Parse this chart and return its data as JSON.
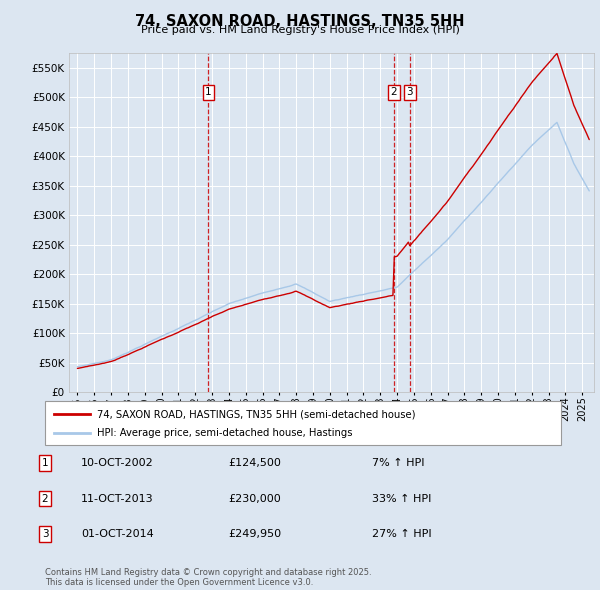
{
  "title": "74, SAXON ROAD, HASTINGS, TN35 5HH",
  "subtitle": "Price paid vs. HM Land Registry's House Price Index (HPI)",
  "bg_color": "#dce6f1",
  "plot_bg_color": "#dce6f1",
  "hpi_color": "#a8c8e8",
  "price_color": "#cc0000",
  "ylim": [
    0,
    575000
  ],
  "yticks": [
    0,
    50000,
    100000,
    150000,
    200000,
    250000,
    300000,
    350000,
    400000,
    450000,
    500000,
    550000
  ],
  "sales": [
    {
      "date_num": 2002.79,
      "price": 124500,
      "label": "1"
    },
    {
      "date_num": 2013.79,
      "price": 230000,
      "label": "2"
    },
    {
      "date_num": 2014.75,
      "price": 249950,
      "label": "3"
    }
  ],
  "legend_price_label": "74, SAXON ROAD, HASTINGS, TN35 5HH (semi-detached house)",
  "legend_hpi_label": "HPI: Average price, semi-detached house, Hastings",
  "table_rows": [
    {
      "num": "1",
      "date": "10-OCT-2002",
      "price": "£124,500",
      "change": "7% ↑ HPI"
    },
    {
      "num": "2",
      "date": "11-OCT-2013",
      "price": "£230,000",
      "change": "33% ↑ HPI"
    },
    {
      "num": "3",
      "date": "01-OCT-2014",
      "price": "£249,950",
      "change": "27% ↑ HPI"
    }
  ],
  "footer": "Contains HM Land Registry data © Crown copyright and database right 2025.\nThis data is licensed under the Open Government Licence v3.0.",
  "xmin": 1994.5,
  "xmax": 2025.7
}
